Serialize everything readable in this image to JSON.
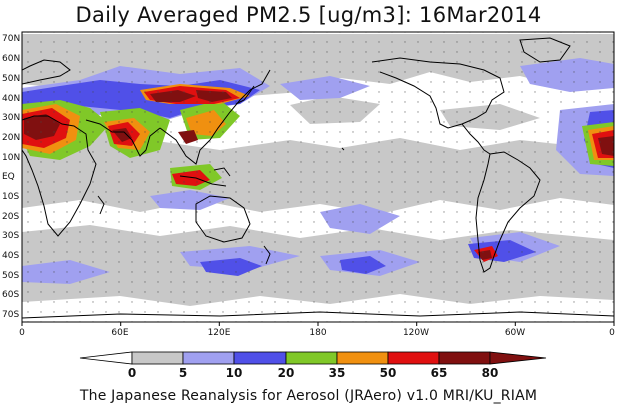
{
  "title": "Daily Averaged PM2.5 [ug/m3]: 16Mar2014",
  "footer": "The Japanese Reanalysis for Aerosol (JRAero) v1.0 MRI/KU_RIAM",
  "latitude_labels": [
    "70N",
    "60N",
    "50N",
    "40N",
    "30N",
    "20N",
    "10N",
    "EQ",
    "10S",
    "20S",
    "30S",
    "40S",
    "50S",
    "60S",
    "70S"
  ],
  "longitude_labels": [
    "0",
    "60E",
    "120E",
    "180",
    "120W",
    "60W",
    "0"
  ],
  "colorbar": {
    "ticks": [
      "0",
      "5",
      "10",
      "20",
      "35",
      "50",
      "65",
      "80"
    ],
    "colors": [
      "#ffffff",
      "#c8c8c8",
      "#a0a0f0",
      "#5050e8",
      "#80c828",
      "#f09010",
      "#e01010",
      "#801010"
    ]
  }
}
